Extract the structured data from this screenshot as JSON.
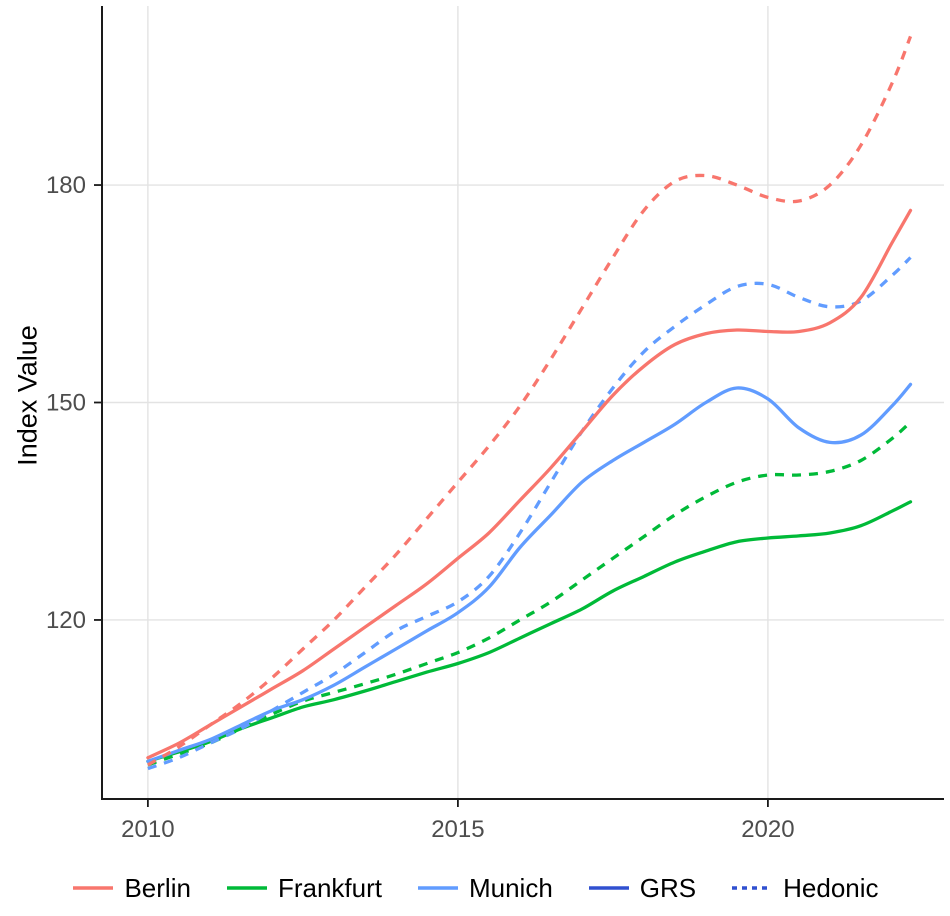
{
  "chart_data": {
    "type": "line",
    "title": "",
    "xlabel": "",
    "ylabel": "Index Value",
    "xlim": [
      2009.26,
      2022.84
    ],
    "ylim": [
      95.3,
      204.7
    ],
    "x_ticks": [
      2010,
      2015,
      2020
    ],
    "y_ticks": [
      120,
      150,
      180
    ],
    "grid": true,
    "grid_color": "#E3E3E3",
    "axis_line_color": "#1a1a1a",
    "tick_label_color": "#4D4D4D",
    "legend_position": "bottom",
    "legend": [
      {
        "label": "Berlin",
        "color": "#F8766D",
        "dash": false
      },
      {
        "label": "Frankfurt",
        "color": "#00BA38",
        "dash": false
      },
      {
        "label": "Munich",
        "color": "#619CFF",
        "dash": false
      },
      {
        "label": "GRS",
        "color": "#3050D0",
        "dash": false
      },
      {
        "label": "Hedonic",
        "color": "#3050D0",
        "dash": true
      }
    ],
    "x": [
      2010,
      2010.5,
      2011,
      2011.5,
      2012,
      2012.5,
      2013,
      2013.5,
      2014,
      2014.5,
      2015,
      2015.5,
      2016,
      2016.5,
      2017,
      2017.5,
      2018,
      2018.5,
      2019,
      2019.5,
      2020,
      2020.5,
      2021,
      2021.5,
      2022,
      2022.3
    ],
    "series": [
      {
        "name": "Frankfurt GRS",
        "city": "Frankfurt",
        "method": "GRS",
        "color": "#00BA38",
        "dash": false,
        "y": [
          100.5,
          101.8,
          103.2,
          105,
          106.5,
          108,
          109,
          110.2,
          111.5,
          112.8,
          114,
          115.5,
          117.5,
          119.5,
          121.5,
          124,
          126,
          128,
          129.5,
          130.8,
          131.3,
          131.6,
          132,
          133,
          135,
          136.3
        ]
      },
      {
        "name": "Frankfurt Hedonic",
        "city": "Frankfurt",
        "method": "Hedonic",
        "color": "#00BA38",
        "dash": true,
        "y": [
          100,
          101.5,
          103,
          105,
          107,
          108.8,
          110,
          111.2,
          112.5,
          114,
          115.5,
          117.5,
          120,
          122.5,
          125.5,
          128.5,
          131.5,
          134.5,
          137,
          139,
          140,
          140,
          140.5,
          142,
          145,
          147.3
        ]
      },
      {
        "name": "Munich GRS",
        "city": "Munich",
        "method": "GRS",
        "color": "#619CFF",
        "dash": false,
        "y": [
          100.5,
          102,
          103.5,
          105.5,
          107.5,
          109,
          111,
          113.5,
          116,
          118.5,
          121,
          124.5,
          130,
          134.5,
          139,
          142,
          144.5,
          147,
          150,
          152,
          150.5,
          146.5,
          144.5,
          145.5,
          149.5,
          152.5
        ]
      },
      {
        "name": "Munich Hedonic",
        "city": "Munich",
        "method": "Hedonic",
        "color": "#619CFF",
        "dash": true,
        "y": [
          99.5,
          101,
          103,
          105,
          107.5,
          110,
          112.5,
          115.5,
          118.5,
          120.5,
          122.5,
          126,
          132,
          139,
          146,
          152,
          157,
          160.5,
          163.5,
          166,
          166.3,
          164.5,
          163.2,
          164,
          167.5,
          170
        ]
      },
      {
        "name": "Berlin GRS",
        "city": "Berlin",
        "method": "GRS",
        "color": "#F8766D",
        "dash": false,
        "y": [
          101,
          103,
          105.5,
          108,
          110.5,
          113,
          116,
          119,
          122,
          125,
          128.5,
          132,
          136.5,
          141,
          146,
          151,
          155,
          158,
          159.5,
          160,
          159.8,
          159.8,
          161,
          164.5,
          172,
          176.5
        ]
      },
      {
        "name": "Berlin Hedonic",
        "city": "Berlin",
        "method": "Hedonic",
        "color": "#F8766D",
        "dash": true,
        "y": [
          100,
          102.5,
          105.5,
          108.5,
          112,
          116,
          120,
          124.5,
          129,
          134,
          139,
          144,
          149.5,
          156,
          163,
          170,
          176.5,
          180.5,
          181.3,
          180,
          178.3,
          177.8,
          180,
          185.5,
          194,
          200.5
        ]
      }
    ]
  }
}
